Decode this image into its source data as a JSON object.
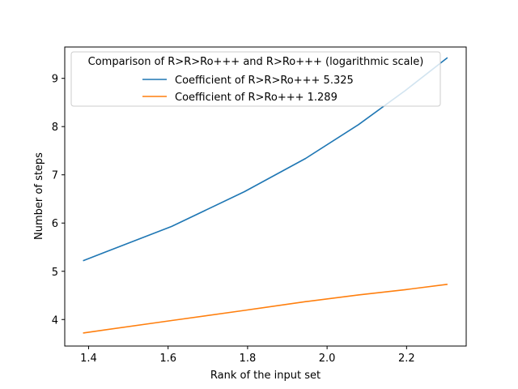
{
  "chart_data": {
    "type": "line",
    "title": "",
    "xlabel": "Rank of the input set",
    "ylabel": "Number of steps",
    "xlim": [
      1.34,
      2.35
    ],
    "ylim": [
      3.45,
      9.65
    ],
    "xticks": [
      1.4,
      1.6,
      1.8,
      2.0,
      2.2
    ],
    "xtick_labels": [
      "1.4",
      "1.6",
      "1.8",
      "2.0",
      "2.2"
    ],
    "yticks": [
      4,
      5,
      6,
      7,
      8,
      9
    ],
    "ytick_labels": [
      "4",
      "5",
      "6",
      "7",
      "8",
      "9"
    ],
    "grid": false,
    "legend": {
      "title": "Comparison of R>R>Ro+++ and R>Ro+++ (logarithmic scale)",
      "placement": "top-center"
    },
    "series": [
      {
        "name": "Coefficient of R>R>Ro+++ 5.325",
        "color": "#1f77b4",
        "x": [
          1.386,
          1.609,
          1.792,
          1.946,
          2.079,
          2.197,
          2.303
        ],
        "y": [
          5.22,
          5.93,
          6.65,
          7.34,
          8.04,
          8.75,
          9.43
        ]
      },
      {
        "name": "Coefficient of R>Ro+++ 1.289",
        "color": "#ff7f0e",
        "x": [
          1.386,
          1.609,
          1.792,
          1.946,
          2.079,
          2.197,
          2.303
        ],
        "y": [
          3.72,
          3.98,
          4.19,
          4.37,
          4.51,
          4.62,
          4.73
        ]
      }
    ]
  }
}
